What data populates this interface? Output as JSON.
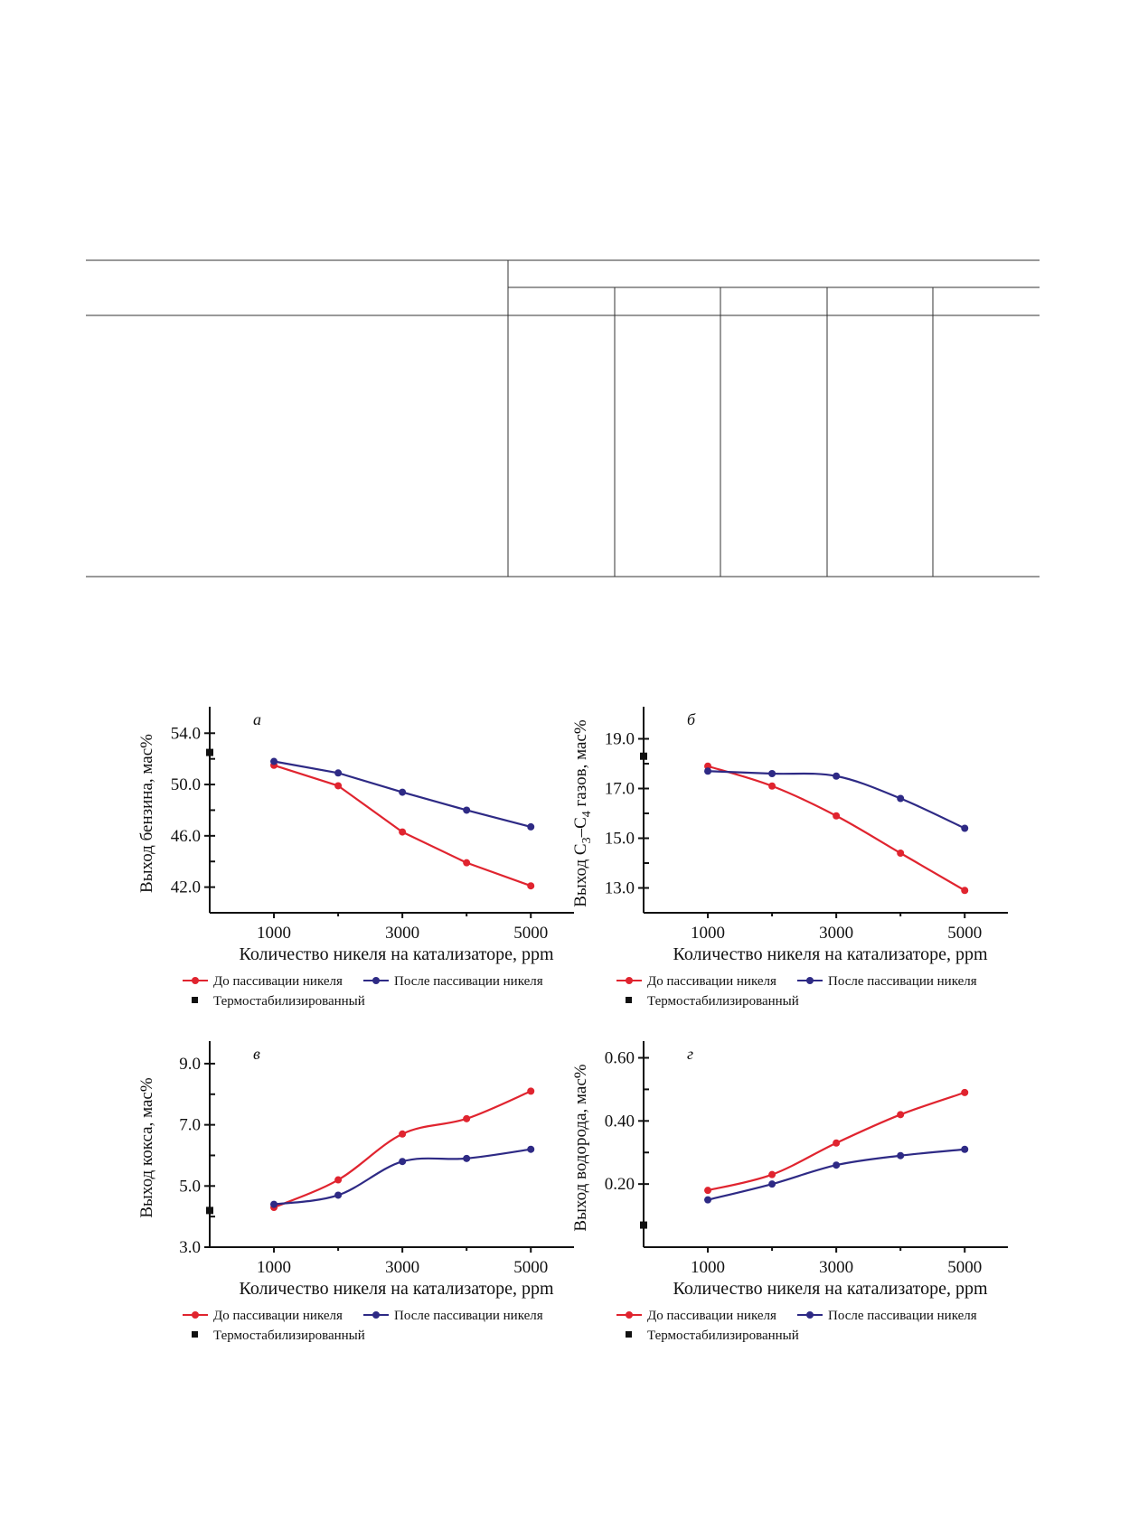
{
  "colors": {
    "before": "#e0242f",
    "after": "#2e2a85",
    "thermo": "#111111"
  },
  "legend": {
    "before": "До пассивации никеля",
    "after": "После пассивации никеля",
    "thermo": "Термостабилизированный"
  },
  "chart_data": [
    {
      "type": "line",
      "panel": "а",
      "xlabel": "Количество никеля на катализаторе, ppm",
      "ylabel": "Выход бензина, мас%",
      "x_ticks": [
        1000,
        3000,
        5000
      ],
      "y_ticks": [
        "54.0",
        "50.0",
        "46.0",
        "42.0"
      ],
      "xlim": [
        0,
        5250
      ],
      "ylim": [
        40.0,
        55.5
      ],
      "smooth": false,
      "x": [
        1000,
        2000,
        3000,
        4000,
        5000
      ],
      "series": [
        {
          "name": "До пассивации никеля",
          "values": [
            51.5,
            49.9,
            46.3,
            43.9,
            42.1
          ]
        },
        {
          "name": "После пассивации никеля",
          "values": [
            51.8,
            50.9,
            49.4,
            48.0,
            46.7
          ]
        }
      ],
      "thermo_value": 52.5
    },
    {
      "type": "line",
      "panel": "б",
      "xlabel": "Количество никеля на катализаторе, ppm",
      "ylabel": "Выход C3–C4 газов, мас%",
      "ylabel_parts": [
        "Выход C",
        "3",
        "–C",
        "4",
        " газов, мас%"
      ],
      "x_ticks": [
        1000,
        3000,
        5000
      ],
      "y_ticks": [
        "19.0",
        "17.0",
        "15.0",
        "13.0"
      ],
      "xlim": [
        0,
        5250
      ],
      "ylim": [
        12.0,
        20.0
      ],
      "smooth": true,
      "x": [
        1000,
        2000,
        3000,
        4000,
        5000
      ],
      "series": [
        {
          "name": "До пассивации никеля",
          "values": [
            17.9,
            17.1,
            15.9,
            14.4,
            12.9
          ]
        },
        {
          "name": "После пассивации никеля",
          "values": [
            17.7,
            17.6,
            17.5,
            16.6,
            15.4
          ]
        }
      ],
      "thermo_value": 18.3
    },
    {
      "type": "line",
      "panel": "в",
      "xlabel": "Количество никеля на катализаторе, ppm",
      "ylabel": "Выход кокса, мас%",
      "x_ticks": [
        1000,
        3000,
        5000
      ],
      "y_ticks": [
        "9.0",
        "7.0",
        "5.0",
        "3.0"
      ],
      "xlim": [
        0,
        5250
      ],
      "ylim": [
        3.0,
        9.5
      ],
      "smooth": true,
      "x": [
        1000,
        2000,
        3000,
        4000,
        5000
      ],
      "series": [
        {
          "name": "До пассивации никеля",
          "values": [
            4.3,
            5.2,
            6.7,
            7.2,
            8.1
          ]
        },
        {
          "name": "После пассивации никеля",
          "values": [
            4.4,
            4.7,
            5.8,
            5.9,
            6.2
          ]
        }
      ],
      "thermo_value": 4.2
    },
    {
      "type": "line",
      "panel": "г",
      "xlabel": "Количество никеля на катализаторе, ppm",
      "ylabel": "Выход водорода, мас%",
      "x_ticks": [
        1000,
        3000,
        5000
      ],
      "y_ticks": [
        "0.60",
        "0.40",
        "0.20"
      ],
      "xlim": [
        0,
        5250
      ],
      "ylim": [
        0.0,
        0.63
      ],
      "smooth": true,
      "x": [
        1000,
        2000,
        3000,
        4000,
        5000
      ],
      "series": [
        {
          "name": "До пассивации никеля",
          "values": [
            0.18,
            0.23,
            0.33,
            0.42,
            0.49
          ]
        },
        {
          "name": "После пассивации никеля",
          "values": [
            0.15,
            0.2,
            0.26,
            0.29,
            0.31
          ]
        }
      ],
      "thermo_value": 0.07
    }
  ]
}
